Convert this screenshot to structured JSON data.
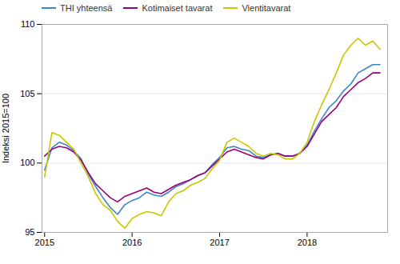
{
  "chart_data": {
    "type": "line",
    "ylabel": "Indeksi 2015=100",
    "x": [
      2015,
      2015.0833333333,
      2015.1666666667,
      2015.25,
      2015.3333333333,
      2015.4166666667,
      2015.5,
      2015.5833333333,
      2015.6666666667,
      2015.75,
      2015.8333333333,
      2015.9166666667,
      2016,
      2016.0833333333,
      2016.1666666667,
      2016.25,
      2016.3333333333,
      2016.4166666667,
      2016.5,
      2016.5833333333,
      2016.6666666667,
      2016.75,
      2016.8333333333,
      2016.9166666667,
      2017,
      2017.0833333333,
      2017.1666666667,
      2017.25,
      2017.3333333333,
      2017.4166666667,
      2017.5,
      2017.5833333333,
      2017.6666666667,
      2017.75,
      2017.8333333333,
      2017.9166666667,
      2018,
      2018.0833333333,
      2018.1666666667,
      2018.25,
      2018.3333333333,
      2018.4166666667,
      2018.5,
      2018.5833333333,
      2018.6666666667,
      2018.75,
      2018.8333333333
    ],
    "series": [
      {
        "name": "THI yhteensä",
        "color": "#3d85c8",
        "values": [
          99.5,
          101.1,
          101.5,
          101.3,
          100.9,
          100.3,
          99.2,
          98.3,
          97.5,
          96.8,
          96.3,
          97.0,
          97.3,
          97.5,
          97.9,
          97.7,
          97.6,
          97.9,
          98.3,
          98.5,
          98.8,
          99.1,
          99.3,
          99.9,
          100.4,
          101.1,
          101.2,
          101.0,
          100.9,
          100.5,
          100.4,
          100.6,
          100.7,
          100.5,
          100.5,
          100.7,
          101.3,
          102.3,
          103.2,
          104.0,
          104.5,
          105.2,
          105.7,
          106.5,
          106.8,
          107.1,
          107.1
        ]
      },
      {
        "name": "Kotimaiset tavarat",
        "color": "#9b007b",
        "values": [
          100.5,
          101.0,
          101.2,
          101.1,
          100.8,
          100.2,
          99.3,
          98.5,
          98.0,
          97.5,
          97.2,
          97.6,
          97.8,
          98.0,
          98.2,
          97.9,
          97.8,
          98.1,
          98.4,
          98.6,
          98.8,
          99.1,
          99.3,
          99.8,
          100.3,
          100.8,
          101.0,
          100.8,
          100.6,
          100.4,
          100.3,
          100.6,
          100.7,
          100.5,
          100.5,
          100.7,
          101.2,
          102.1,
          103.0,
          103.5,
          104.0,
          104.8,
          105.3,
          105.8,
          106.1,
          106.5,
          106.5
        ]
      },
      {
        "name": "Vientitavarat",
        "color": "#c8c800",
        "values": [
          99.0,
          102.2,
          102.0,
          101.5,
          101.0,
          100.0,
          99.0,
          97.8,
          97.0,
          96.6,
          95.8,
          95.3,
          96.0,
          96.3,
          96.5,
          96.4,
          96.2,
          97.2,
          97.8,
          98.0,
          98.4,
          98.6,
          98.9,
          99.6,
          100.2,
          101.5,
          101.8,
          101.5,
          101.2,
          100.7,
          100.5,
          100.7,
          100.6,
          100.3,
          100.3,
          100.7,
          101.5,
          103.0,
          104.2,
          105.3,
          106.5,
          107.8,
          108.5,
          109.0,
          108.5,
          108.8,
          108.2
        ]
      }
    ],
    "xlim": [
      2014.97,
      2018.92
    ],
    "xticks": [
      2015,
      2016,
      2017,
      2018
    ],
    "ylim": [
      95,
      110
    ],
    "yticks": [
      95,
      100,
      105,
      110
    ],
    "grid": true,
    "legend": "upper left"
  }
}
